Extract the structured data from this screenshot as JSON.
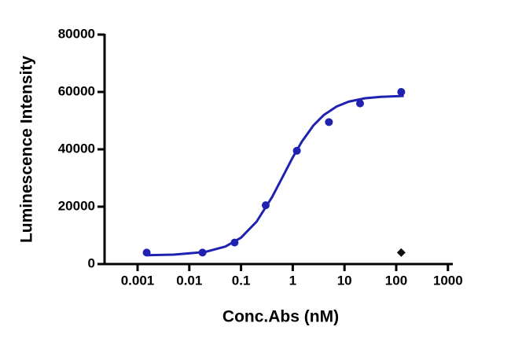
{
  "chart_data": {
    "type": "scatter",
    "x_label": "Conc.Abs (nM)",
    "y_label": "Luminescence Intensity",
    "xscale": "log",
    "xlim": [
      0.00023,
      1200
    ],
    "ylim": [
      0,
      80000
    ],
    "xticks": [
      0.001,
      0.01,
      0.1,
      1,
      10,
      100,
      1000
    ],
    "yticks": [
      0,
      20000,
      40000,
      60000,
      80000
    ],
    "series": [
      {
        "color": "#1f22b0",
        "marker": "circle",
        "x": [
          0.0015,
          0.018,
          0.075,
          0.3,
          1.2,
          5,
          20,
          125
        ],
        "values": [
          4000,
          4000,
          7500,
          20500,
          39500,
          49500,
          56000,
          60000
        ]
      },
      {
        "color": "#111111",
        "marker": "diamond",
        "x": [
          125
        ],
        "values": [
          4000
        ]
      }
    ],
    "fit": {
      "color": "#1f22b0",
      "x": [
        0.0015,
        0.005,
        0.02,
        0.05,
        0.1,
        0.2,
        0.4,
        0.7,
        1,
        1.5,
        2.5,
        4,
        7,
        12,
        25,
        50,
        140
      ],
      "values": [
        3100,
        3300,
        4200,
        6100,
        9200,
        14800,
        23400,
        31800,
        37200,
        42700,
        48300,
        52000,
        54900,
        56600,
        57800,
        58300,
        58600
      ]
    }
  }
}
